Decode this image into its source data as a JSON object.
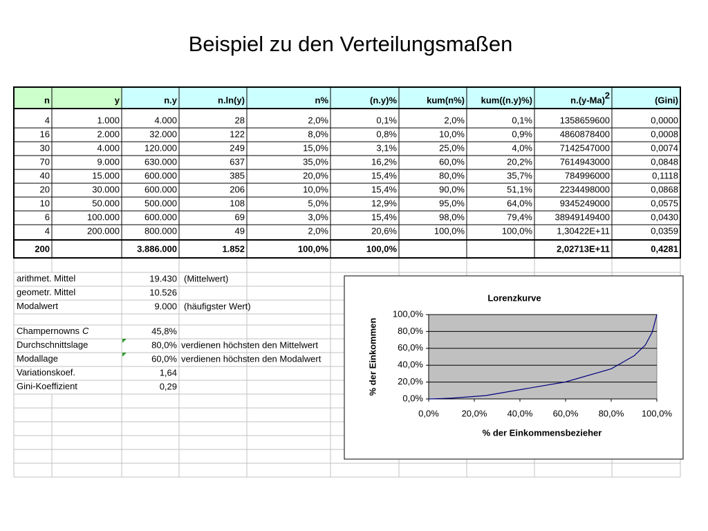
{
  "title": "Beispiel zu den Verteilungsmaßen",
  "table": {
    "header": [
      "n",
      "y",
      "n.y",
      "n.ln(y)",
      "n%",
      "(n.y)%",
      "kum(n%)",
      "kum((n.y)%)",
      {
        "text": "n.(y-Ma)",
        "sup": "2"
      },
      "(Gini)"
    ],
    "rows": [
      [
        "4",
        "1.000",
        "4.000",
        "28",
        "2,0%",
        "0,1%",
        "2,0%",
        "0,1%",
        "1358659600",
        "0,0000"
      ],
      [
        "16",
        "2.000",
        "32.000",
        "122",
        "8,0%",
        "0,8%",
        "10,0%",
        "0,9%",
        "4860878400",
        "0,0008"
      ],
      [
        "30",
        "4.000",
        "120.000",
        "249",
        "15,0%",
        "3,1%",
        "25,0%",
        "4,0%",
        "7142547000",
        "0,0074"
      ],
      [
        "70",
        "9.000",
        "630.000",
        "637",
        "35,0%",
        "16,2%",
        "60,0%",
        "20,2%",
        "7614943000",
        "0,0848"
      ],
      [
        "40",
        "15.000",
        "600.000",
        "385",
        "20,0%",
        "15,4%",
        "80,0%",
        "35,7%",
        "784996000",
        "0,1118"
      ],
      [
        "20",
        "30.000",
        "600.000",
        "206",
        "10,0%",
        "15,4%",
        "90,0%",
        "51,1%",
        "2234498000",
        "0,0868"
      ],
      [
        "10",
        "50.000",
        "500.000",
        "108",
        "5,0%",
        "12,9%",
        "95,0%",
        "64,0%",
        "9345249000",
        "0,0575"
      ],
      [
        "6",
        "100.000",
        "600.000",
        "69",
        "3,0%",
        "15,4%",
        "98,0%",
        "79,4%",
        "38949149400",
        "0,0430"
      ],
      [
        "4",
        "200.000",
        "800.000",
        "49",
        "2,0%",
        "20,6%",
        "100,0%",
        "100,0%",
        "1,30422E+11",
        "0,0359"
      ]
    ],
    "total": [
      "200",
      null,
      "3.886.000",
      "1.852",
      "100,0%",
      "100,0%",
      null,
      null,
      "2,02713E+11",
      "0,4281"
    ]
  },
  "stats": [
    {
      "label": "arithmet. Mittel",
      "value": "19.430",
      "note": "(Mittelwert)"
    },
    {
      "label": "geometr. Mittel",
      "value": "10.526"
    },
    {
      "label": "Modalwert",
      "value": "9.000",
      "note": "(häufigster Wert)"
    },
    {
      "label": "Champernowns",
      "label_italic": "C",
      "value": "45,8%"
    },
    {
      "label": "Durchschnittslage",
      "value": "80,0%",
      "note_small": "verdienen höchsten den Mittelwert"
    },
    {
      "label": "Modallage",
      "value": "60,0%",
      "note_small": "verdienen höchsten den Modalwert"
    },
    {
      "label": "Variationskoef.",
      "value": "1,64"
    },
    {
      "label": "Gini-Koeffizient",
      "value": "0,29"
    }
  ],
  "chart_data": {
    "type": "line",
    "title": "Lorenzkurve",
    "x_label": "% der Einkommensbezieher",
    "y_label": "% der Einkommen",
    "x": [
      0,
      2,
      10,
      25,
      60,
      80,
      90,
      95,
      98,
      100
    ],
    "series": [
      {
        "name": "Lorenzkurve",
        "color": "#000080",
        "values": [
          0,
          0.1,
          0.9,
          4.0,
          20.2,
          35.7,
          51.1,
          64.0,
          79.4,
          100
        ]
      }
    ],
    "xlim": [
      0,
      100
    ],
    "ylim": [
      0,
      100
    ],
    "xticks": [
      {
        "value": 0,
        "label": "0,0%"
      },
      {
        "value": 20,
        "label": "20,0%"
      },
      {
        "value": 40,
        "label": "40,0%"
      },
      {
        "value": 60,
        "label": "60,0%"
      },
      {
        "value": 80,
        "label": "80,0%"
      },
      {
        "value": 100,
        "label": "100,0%"
      }
    ],
    "yticks": [
      {
        "value": 0,
        "label": "0,0%"
      },
      {
        "value": 20,
        "label": "20,0%"
      },
      {
        "value": 40,
        "label": "40,0%"
      },
      {
        "value": 60,
        "label": "60,0%"
      },
      {
        "value": 80,
        "label": "80,0%"
      },
      {
        "value": 100,
        "label": "100,0%"
      }
    ],
    "grid": true,
    "plot_background": "#c0c0c0"
  }
}
